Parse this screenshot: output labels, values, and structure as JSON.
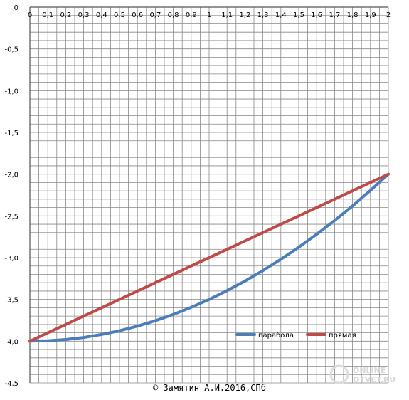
{
  "chart_data": {
    "type": "line",
    "title": "",
    "xlabel": "",
    "ylabel": "",
    "xlim": [
      0,
      2
    ],
    "ylim": [
      -4.5,
      0
    ],
    "grid": true,
    "x_ticks": [
      "0",
      "0,1",
      "0,2",
      "0,3",
      "0,4",
      "0,5",
      "0,6",
      "0,7",
      "0,8",
      "0,9",
      "1",
      "1,1",
      "1,2",
      "1,3",
      "1,4",
      "1,5",
      "1,6",
      "1,7",
      "1,8",
      "1,9",
      "2"
    ],
    "y_ticks": [
      "0",
      "-0,5",
      "-1,0",
      "-1,5",
      "-2,0",
      "-2,5",
      "-3,0",
      "-3,5",
      "-4,0",
      "-4,5"
    ],
    "legend_position": "bottom-right",
    "series": [
      {
        "name": "парабола",
        "color": "#4a7ebb",
        "x": [
          0,
          0.1,
          0.2,
          0.3,
          0.4,
          0.5,
          0.6,
          0.7,
          0.8,
          0.9,
          1.0,
          1.1,
          1.2,
          1.3,
          1.4,
          1.5,
          1.6,
          1.7,
          1.8,
          1.9,
          2.0
        ],
        "y": [
          -4.0,
          -3.995,
          -3.98,
          -3.955,
          -3.92,
          -3.875,
          -3.82,
          -3.755,
          -3.68,
          -3.595,
          -3.5,
          -3.395,
          -3.28,
          -3.155,
          -3.02,
          -2.875,
          -2.72,
          -2.555,
          -2.38,
          -2.195,
          -2.0
        ]
      },
      {
        "name": "прямая",
        "color": "#be4b48",
        "x": [
          0,
          0.1,
          0.2,
          0.3,
          0.4,
          0.5,
          0.6,
          0.7,
          0.8,
          0.9,
          1.0,
          1.1,
          1.2,
          1.3,
          1.4,
          1.5,
          1.6,
          1.7,
          1.8,
          1.9,
          2.0
        ],
        "y": [
          -4.0,
          -3.9,
          -3.8,
          -3.7,
          -3.6,
          -3.5,
          -3.4,
          -3.3,
          -3.2,
          -3.1,
          -3.0,
          -2.9,
          -2.8,
          -2.7,
          -2.6,
          -2.5,
          -2.4,
          -2.3,
          -2.2,
          -2.1,
          -2.0
        ]
      }
    ]
  },
  "footer": {
    "copyright": "© Замятин А.И.2016,СПб",
    "watermark_line1": "ONLINE",
    "watermark_line2": "OTVET.RU"
  }
}
